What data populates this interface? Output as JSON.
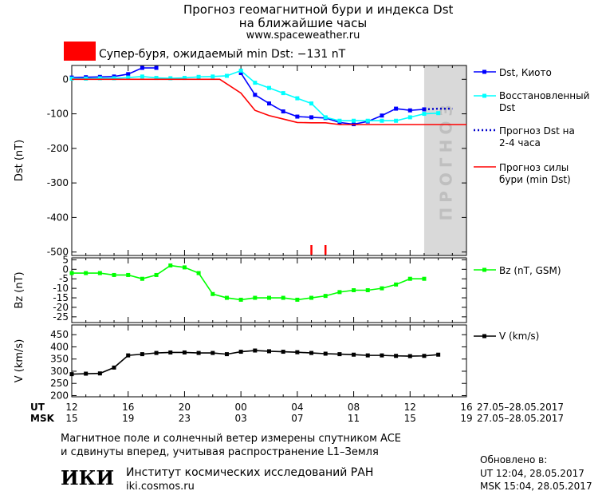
{
  "header": {
    "title_line1": "Прогноз геомагнитной бури и индекса Dst",
    "title_line2": "на ближайшие часы",
    "site": "www.spaceweather.ru"
  },
  "storm_banner": {
    "text": "Супер-буря, ожидаемый min Dst: −131 nT",
    "color": "#ff0000"
  },
  "forecast_band_label": "ПРОГНОЗ",
  "legend": {
    "dst_kyoto": "Dst, Киото",
    "dst_restored": "Восстановленный Dst",
    "dst_forecast": "Прогноз Dst на 2-4 часа",
    "storm_forecast": "Прогноз силы бури (min Dst)",
    "bz": "Bz (nT, GSM)",
    "v": "V (km/s)"
  },
  "axes": {
    "ut_label": "UT",
    "msk_label": "MSK",
    "ut_ticks": [
      "12",
      "16",
      "20",
      "00",
      "04",
      "08",
      "12",
      "16"
    ],
    "msk_ticks": [
      "15",
      "19",
      "23",
      "03",
      "07",
      "11",
      "15",
      "19"
    ],
    "date_range_ut": "27.05–28.05.2017",
    "date_range_msk": "27.05–28.05.2017"
  },
  "footer": {
    "note_line1": "Магнитное поле и солнечный ветер измерены спутником ACE",
    "note_line2": "и сдвинуты вперед, учитывая распространение L1–Земля",
    "institute": "Институт космических исследований РАН",
    "institute_site": "iki.cosmos.ru",
    "logo_text": "ИКИ",
    "updated_label": "Обновлено в:",
    "updated_ut": "UT   12:04, 28.05.2017",
    "updated_msk": "MSK 15:04, 28.05.2017"
  },
  "chart_data": [
    {
      "type": "line",
      "ylabel": "Dst (nT)",
      "ylim": [
        -510,
        40
      ],
      "yticks": [
        0,
        -100,
        -200,
        -300,
        -400,
        -500
      ],
      "xlim": [
        12,
        40
      ],
      "forecast_region_x": [
        37,
        40
      ],
      "series": [
        {
          "name": "Dst, Киото",
          "color": "#0000ff",
          "x": [
            12,
            13,
            14,
            15,
            16,
            17,
            18,
            19,
            20,
            21,
            22,
            23,
            24,
            25,
            26,
            27,
            28,
            29,
            30,
            31,
            32,
            33,
            34,
            35,
            36,
            37
          ],
          "y": [
            5,
            6,
            7,
            8,
            15,
            33,
            33,
            null,
            null,
            null,
            null,
            null,
            18,
            -45,
            -70,
            -93,
            -108,
            -110,
            -112,
            -125,
            -130,
            -122,
            -105,
            -85,
            -90,
            -87
          ]
        },
        {
          "name": "Восстановленный Dst",
          "color": "#00ffff",
          "x": [
            12,
            13,
            14,
            15,
            16,
            17,
            18,
            19,
            20,
            21,
            22,
            23,
            24,
            25,
            26,
            27,
            28,
            29,
            30,
            31,
            32,
            33,
            34,
            35,
            36,
            37,
            38
          ],
          "y": [
            2,
            2,
            3,
            3,
            5,
            8,
            4,
            3,
            4,
            7,
            8,
            10,
            25,
            -10,
            -25,
            -40,
            -55,
            -70,
            -110,
            -120,
            -120,
            -120,
            -120,
            -120,
            -110,
            -100,
            -98
          ]
        },
        {
          "name": "Прогноз Dst на 2-4 часа",
          "color": "#0000cc",
          "style": "dotted",
          "x": [
            37,
            38,
            39
          ],
          "y": [
            -87,
            -85,
            -85
          ]
        },
        {
          "name": "Прогноз силы бури (min Dst)",
          "color": "#ff0000",
          "x": [
            12,
            22.5,
            24,
            25,
            26,
            27,
            28,
            29,
            30,
            31,
            32,
            40
          ],
          "y": [
            0,
            0,
            -40,
            -90,
            -105,
            -115,
            -125,
            -126,
            -126,
            -131,
            -131,
            -131
          ]
        }
      ],
      "event_markers_x": [
        29,
        30
      ]
    },
    {
      "type": "line",
      "ylabel": "Bz (nT)",
      "ylim": [
        -28,
        6
      ],
      "yticks": [
        5,
        0,
        -5,
        -10,
        -15,
        -20,
        -25
      ],
      "series": [
        {
          "name": "Bz (nT, GSM)",
          "color": "#00ff00",
          "x": [
            12,
            13,
            14,
            15,
            16,
            17,
            18,
            19,
            20,
            21,
            22,
            23,
            24,
            25,
            26,
            27,
            28,
            29,
            30,
            31,
            32,
            33,
            34,
            35,
            36,
            37,
            38
          ],
          "y": [
            -2,
            -2,
            -2,
            -3,
            -3,
            -5,
            -3,
            2,
            1,
            -2,
            -13,
            -15,
            -16,
            -15,
            -15,
            -15,
            -16,
            -15,
            -14,
            -12,
            -11,
            -11,
            -10,
            -8,
            -5,
            -5,
            null
          ]
        }
      ]
    },
    {
      "type": "line",
      "ylabel": "V (km/s)",
      "ylim": [
        195,
        490
      ],
      "yticks": [
        450,
        400,
        350,
        300,
        250,
        200
      ],
      "series": [
        {
          "name": "V (km/s)",
          "color": "#000000",
          "x": [
            12,
            13,
            14,
            15,
            16,
            17,
            18,
            19,
            20,
            21,
            22,
            23,
            24,
            25,
            26,
            27,
            28,
            29,
            30,
            31,
            32,
            33,
            34,
            35,
            36,
            37,
            38
          ],
          "y": [
            288,
            290,
            291,
            315,
            365,
            370,
            375,
            377,
            377,
            375,
            375,
            370,
            380,
            385,
            382,
            380,
            378,
            375,
            372,
            370,
            368,
            365,
            365,
            363,
            362,
            363,
            368
          ]
        }
      ]
    }
  ]
}
